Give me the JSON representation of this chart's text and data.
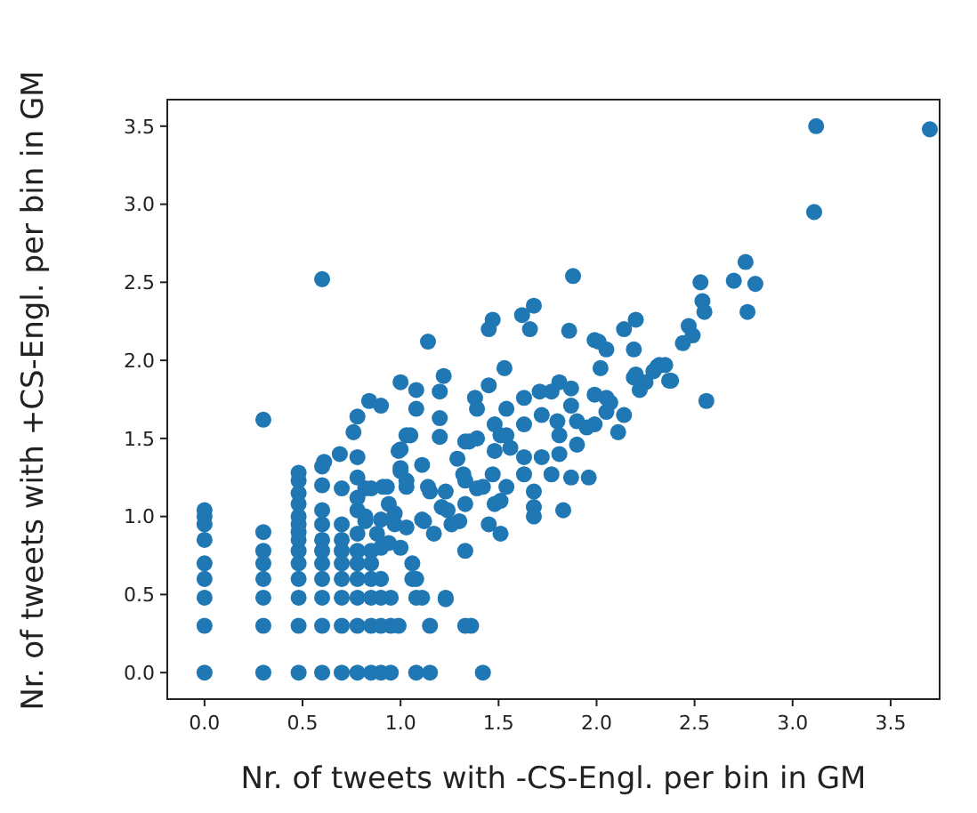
{
  "chart_data": {
    "type": "scatter",
    "xlabel": "Nr. of tweets with -CS-Engl. per bin in GM",
    "ylabel": "Nr. of tweets with +CS-Engl. per bin in GM",
    "marker": "circle",
    "xlim": [
      -0.19,
      3.75
    ],
    "ylim": [
      -0.17,
      3.67
    ],
    "xticks": [
      {
        "value": 0,
        "label": "0.0"
      },
      {
        "value": 0.5,
        "label": "0.5"
      },
      {
        "value": 1,
        "label": "1.0"
      },
      {
        "value": 1.5,
        "label": "1.5"
      },
      {
        "value": 2,
        "label": "2.0"
      },
      {
        "value": 2.5,
        "label": "2.5"
      },
      {
        "value": 3,
        "label": "3.0"
      },
      {
        "value": 3.5,
        "label": "3.5"
      }
    ],
    "yticks": [
      {
        "value": 0,
        "label": "0.0"
      },
      {
        "value": 0.5,
        "label": "0.5"
      },
      {
        "value": 1,
        "label": "1.0"
      },
      {
        "value": 1.5,
        "label": "1.5"
      },
      {
        "value": 2,
        "label": "2.0"
      },
      {
        "value": 2.5,
        "label": "2.5"
      },
      {
        "value": 3,
        "label": "3.0"
      },
      {
        "value": 3.5,
        "label": "3.5"
      }
    ],
    "series": [
      {
        "color": "#1f77b4",
        "x": [
          0,
          0,
          0,
          0,
          0,
          0,
          0,
          0,
          0,
          0.3,
          0.3,
          0.3,
          0.3,
          0.3,
          0.3,
          0.3,
          0.3,
          0.48,
          0.48,
          0.48,
          0.48,
          0.48,
          0.48,
          0.48,
          0.48,
          0.48,
          0.48,
          0.48,
          0.48,
          0.48,
          0.48,
          0.6,
          0.6,
          0.6,
          0.6,
          0.6,
          0.6,
          0.6,
          0.6,
          0.6,
          0.6,
          0.6,
          0.6,
          0.7,
          0.7,
          0.7,
          0.7,
          0.7,
          0.7,
          0.7,
          0.7,
          0.78,
          0.78,
          0.78,
          0.78,
          0.78,
          0.78,
          0.78,
          0.78,
          0.78,
          0.78,
          0.85,
          0.85,
          0.85,
          0.85,
          0.85,
          0.85,
          0.9,
          0.9,
          0.9,
          0.9,
          0.95,
          0.95,
          0.95,
          0.99,
          1.08,
          1.08,
          1.08,
          1.15,
          1.15,
          1.11,
          1.23,
          1.33,
          1.36,
          1.42,
          1.88,
          1.68,
          1.62,
          1.66,
          1.47,
          1.45,
          1.86,
          2.2,
          2.14,
          1.99,
          2.05,
          2.19,
          1.14,
          1.53,
          2.02,
          2.2,
          2.31,
          2.37,
          2.22,
          1.22,
          1.2,
          1.0,
          1.08,
          1.45,
          1.38,
          0.84,
          0.9,
          1.08,
          1.39,
          1.54,
          1.63,
          1.71,
          1.81,
          1.77,
          1.87,
          1.87,
          1.99,
          2.07,
          2.14,
          0.78,
          0.76,
          1.2,
          1.2,
          1.03,
          1.0,
          1.63,
          1.72,
          1.8,
          1.9,
          1.99,
          2.11,
          1.48,
          1.39,
          1.54,
          1.33,
          1.81,
          1.9,
          1.81,
          1.72,
          1.63,
          1.56,
          1.48,
          1.29,
          1.11,
          0.69,
          0.61,
          1.87,
          1.96,
          1.77,
          1.63,
          1.47,
          1.32,
          1.0,
          0.91,
          0.82,
          0.7,
          0.78,
          1.03,
          1.15,
          1.23,
          1.39,
          1.54,
          1.68,
          1.68,
          1.83,
          1.68,
          1.48,
          1.33,
          1.21,
          0.94,
          1.3,
          1.45,
          1.12,
          0.97,
          0.82,
          3.12,
          3.7,
          3.11,
          2.76,
          2.7,
          2.81,
          2.53,
          2.54,
          2.55,
          2.77,
          2.47,
          2.49,
          2.44,
          2.01,
          2.32,
          2.35,
          2.29,
          2.25,
          2.19,
          2.38,
          2.56,
          2.05,
          2.05,
          1.95,
          1.05,
          0.99,
          1.35,
          1.51,
          1.0,
          0.85,
          0.93,
          1.03,
          1.14,
          1.33,
          1.42,
          1.51,
          0.82,
          0.9,
          0.97,
          1.03,
          1.11,
          1.17,
          0.88,
          0.94,
          0.9,
          1.0,
          1.24,
          1.26,
          1.51,
          1.33,
          1.06,
          1.06,
          1.23
        ],
        "values": [
          0,
          0.3,
          0.48,
          0.6,
          0.7,
          0.85,
          0.95,
          1.0,
          1.04,
          0,
          0.3,
          0.48,
          0.6,
          0.7,
          0.78,
          0.9,
          1.62,
          0,
          0.3,
          0.48,
          0.6,
          0.7,
          0.78,
          0.85,
          0.9,
          0.95,
          1.0,
          1.08,
          1.15,
          1.23,
          1.28,
          0,
          0.3,
          0.48,
          0.6,
          0.7,
          0.78,
          0.85,
          0.95,
          1.04,
          1.2,
          1.32,
          2.52,
          0,
          0.3,
          0.48,
          0.6,
          0.7,
          0.78,
          0.85,
          0.95,
          0,
          0.3,
          0.48,
          0.6,
          0.7,
          0.78,
          0.89,
          1.04,
          1.25,
          1.38,
          0,
          0.3,
          0.48,
          0.6,
          0.7,
          0.78,
          0,
          0.3,
          0.48,
          0.6,
          0,
          0.3,
          0.48,
          0.3,
          0,
          0.48,
          0.6,
          0,
          0.3,
          0.48,
          0.48,
          0.3,
          0.3,
          0,
          2.54,
          2.35,
          2.29,
          2.2,
          2.26,
          2.2,
          2.19,
          2.26,
          2.2,
          2.13,
          2.07,
          2.07,
          2.12,
          1.95,
          1.95,
          1.91,
          1.96,
          1.87,
          1.81,
          1.9,
          1.8,
          1.86,
          1.81,
          1.84,
          1.76,
          1.74,
          1.71,
          1.69,
          1.69,
          1.69,
          1.76,
          1.8,
          1.86,
          1.8,
          1.82,
          1.71,
          1.78,
          1.73,
          1.65,
          1.64,
          1.54,
          1.63,
          1.51,
          1.52,
          1.43,
          1.59,
          1.65,
          1.61,
          1.61,
          1.59,
          1.54,
          1.59,
          1.5,
          1.52,
          1.48,
          1.52,
          1.46,
          1.4,
          1.38,
          1.38,
          1.44,
          1.42,
          1.37,
          1.33,
          1.4,
          1.35,
          1.25,
          1.25,
          1.27,
          1.27,
          1.27,
          1.27,
          1.29,
          1.19,
          1.18,
          1.18,
          1.12,
          1.23,
          1.16,
          1.16,
          1.18,
          1.19,
          1.16,
          1.06,
          1.04,
          1.0,
          1.08,
          1.08,
          1.06,
          1.08,
          0.97,
          0.95,
          0.97,
          0.95,
          0.97,
          3.5,
          3.48,
          2.95,
          2.63,
          2.51,
          2.49,
          2.5,
          2.38,
          2.31,
          2.31,
          2.22,
          2.16,
          2.11,
          2.12,
          1.97,
          1.97,
          1.93,
          1.86,
          1.89,
          1.87,
          1.74,
          1.76,
          1.67,
          1.57,
          1.52,
          1.42,
          1.48,
          1.52,
          1.31,
          1.18,
          1.19,
          1.19,
          1.19,
          1.23,
          1.19,
          1.1,
          1.0,
          0.98,
          1.02,
          0.93,
          0.98,
          0.89,
          0.89,
          0.83,
          0.8,
          0.8,
          1.04,
          0.95,
          0.89,
          0.78,
          0.7,
          0.6,
          0.47
        ]
      }
    ]
  }
}
